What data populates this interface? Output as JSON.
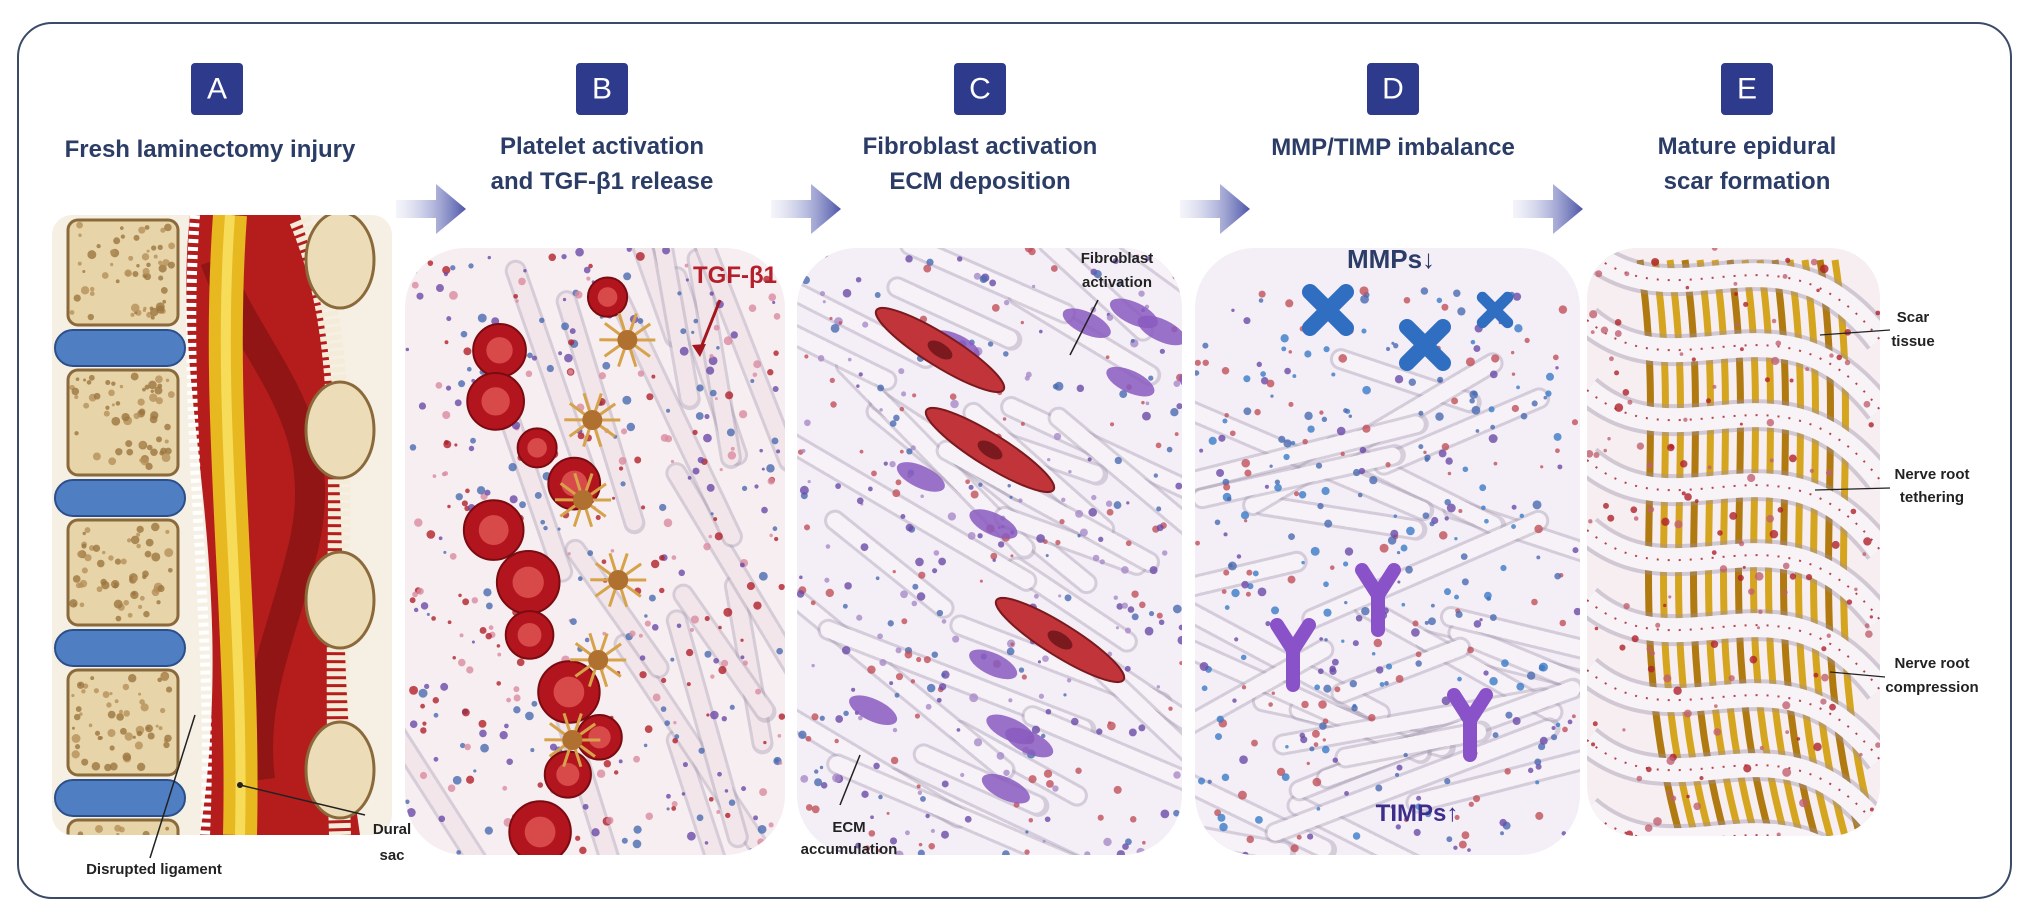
{
  "panels": [
    {
      "letter": "A",
      "title": [
        "Fresh laminectomy injury"
      ],
      "annotations": [
        "Disrupted ligament",
        "Dural",
        "sac"
      ]
    },
    {
      "letter": "B",
      "title": [
        "Platelet activation",
        "and TGF-β1 release"
      ],
      "annotations": [
        "TGF-β1"
      ]
    },
    {
      "letter": "C",
      "title": [
        "Fibroblast activation",
        "ECM deposition"
      ],
      "annotations": [
        "Fibroblast",
        "activation",
        "ECM",
        "accumulation"
      ]
    },
    {
      "letter": "D",
      "title": [
        "MMP/TIMP imbalance"
      ],
      "annotations": [
        "MMPs↓",
        "TIMPs↑"
      ]
    },
    {
      "letter": "E",
      "title": [
        "Mature epidural",
        "scar formation"
      ],
      "annotations": [
        "Scar",
        "tissue",
        "Nerve root",
        "tethering",
        "Nerve root",
        "compression"
      ]
    }
  ]
}
